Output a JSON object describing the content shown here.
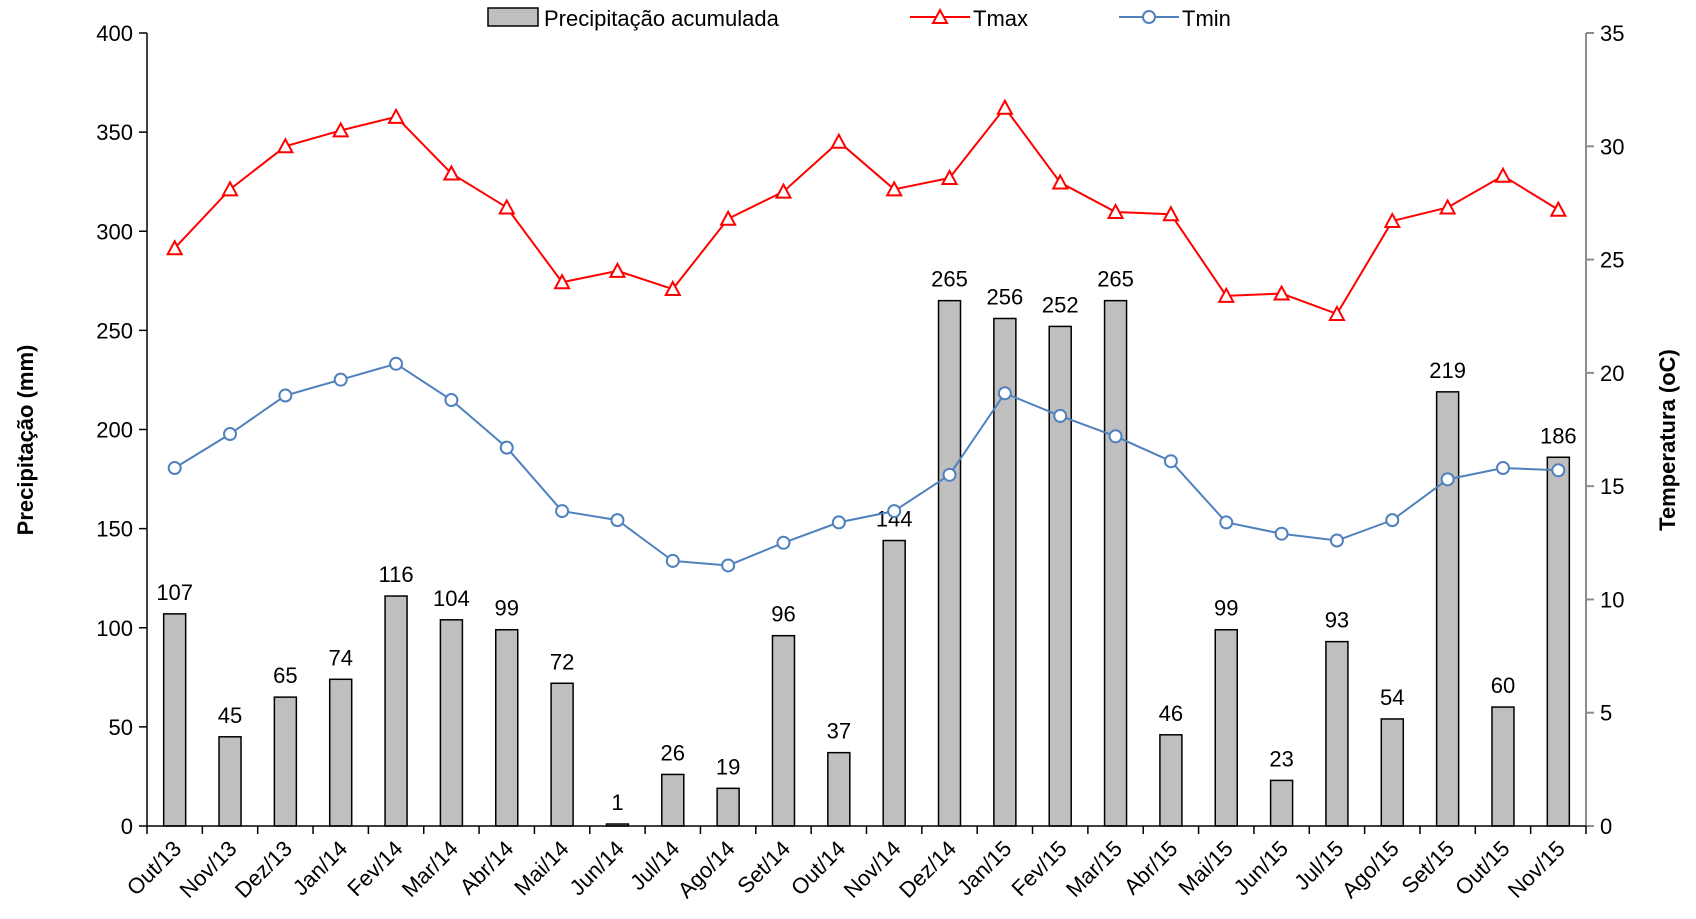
{
  "chart_data": {
    "type": "bar",
    "categories": [
      "Out/13",
      "Nov/13",
      "Dez/13",
      "Jan/14",
      "Fev/14",
      "Mar/14",
      "Abr/14",
      "Mai/14",
      "Jun/14",
      "Jul/14",
      "Ago/14",
      "Set/14",
      "Out/14",
      "Nov/14",
      "Dez/14",
      "Jan/15",
      "Fev/15",
      "Mar/15",
      "Abr/15",
      "Mai/15",
      "Jun/15",
      "Jul/15",
      "Ago/15",
      "Set/15",
      "Out/15",
      "Nov/15"
    ],
    "series": [
      {
        "name": "Precipitação acumulada",
        "type": "bar",
        "axis": "left",
        "color": "#bfbfbf",
        "values": [
          107,
          45,
          65,
          74,
          116,
          104,
          99,
          72,
          1,
          26,
          19,
          96,
          37,
          144,
          265,
          256,
          252,
          265,
          46,
          99,
          23,
          93,
          54,
          219,
          60,
          186
        ]
      },
      {
        "name": "Tmax",
        "type": "line",
        "axis": "right",
        "color": "#ff0000",
        "marker": "triangle",
        "values": [
          25.5,
          28.1,
          30.0,
          30.7,
          31.3,
          28.8,
          27.3,
          24.0,
          24.5,
          23.7,
          26.8,
          28.0,
          30.2,
          28.1,
          28.6,
          31.7,
          28.4,
          27.1,
          27.0,
          23.4,
          23.5,
          22.6,
          26.7,
          27.3,
          28.7,
          27.2
        ]
      },
      {
        "name": "Tmin",
        "type": "line",
        "axis": "right",
        "color": "#4f81bd",
        "marker": "circle",
        "values": [
          15.8,
          17.3,
          19.0,
          19.7,
          20.4,
          18.8,
          16.7,
          13.9,
          13.5,
          11.7,
          11.5,
          12.5,
          13.4,
          13.9,
          15.5,
          19.1,
          18.1,
          17.2,
          16.1,
          13.4,
          12.9,
          12.6,
          13.5,
          15.3,
          15.8,
          15.7
        ]
      }
    ],
    "ylabel": "Precipitação (mm)",
    "y2label": "Temperatura (oC)",
    "ylim": [
      0,
      400
    ],
    "y2lim": [
      0,
      35
    ],
    "yticks": [
      0,
      50,
      100,
      150,
      200,
      250,
      300,
      350,
      400
    ],
    "y2ticks": [
      0,
      5,
      10,
      15,
      20,
      25,
      30,
      35
    ],
    "legend_position": "top-center",
    "grid": false
  }
}
